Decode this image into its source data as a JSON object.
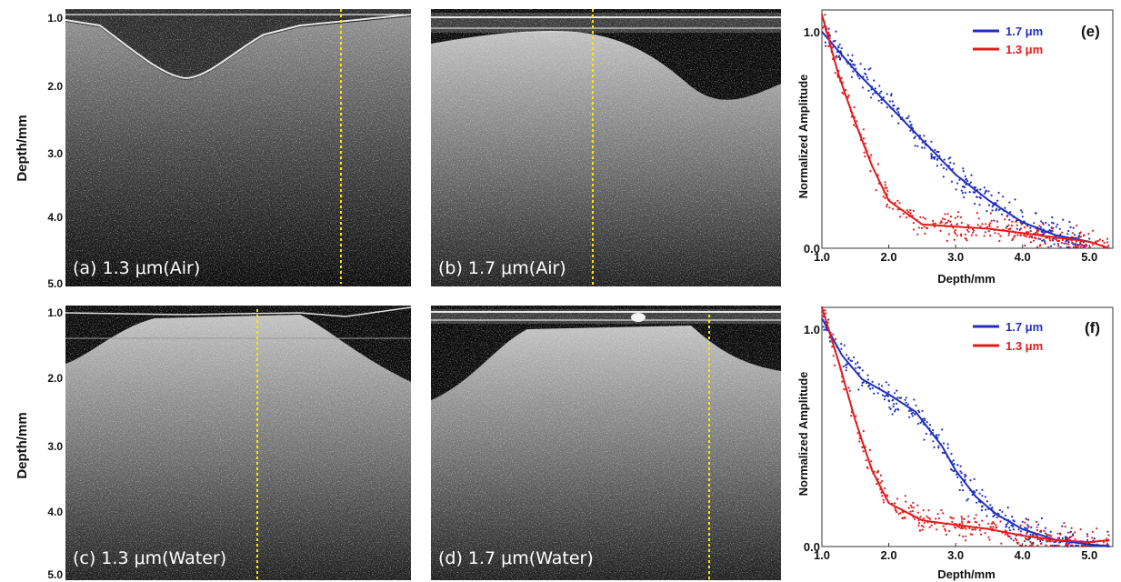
{
  "oct_axis": {
    "ylabel": "Depth/mm",
    "ticks": [
      "1.0",
      "2.0",
      "3.0",
      "4.0",
      "5.0"
    ]
  },
  "panels": [
    {
      "id": "a",
      "label": "(a) 1.3 μm(Air)"
    },
    {
      "id": "b",
      "label": "(b) 1.7 μm(Air)"
    },
    {
      "id": "c",
      "label": "(c) 1.3 μm(Water)"
    },
    {
      "id": "d",
      "label": "(d) 1.7 μm(Water)"
    }
  ],
  "colors": {
    "series_17": "#1f2fbf",
    "series_13": "#e31a1c",
    "guide_line": "#ffe600"
  },
  "chart_data": [
    {
      "type": "scatter",
      "panel_label": "(e)",
      "xlabel": "Depth/mm",
      "ylabel": "Normalized Amplitude",
      "xlim": [
        1.0,
        5.35
      ],
      "ylim": [
        0.0,
        1.1
      ],
      "xticks": [
        "1.0",
        "2.0",
        "3.0",
        "4.0",
        "5.0"
      ],
      "yticks": [
        "0.0",
        "1.0"
      ],
      "legend": "top-right",
      "series": [
        {
          "name": "1.7 μm",
          "x": [
            1.0,
            1.5,
            2.0,
            2.5,
            3.0,
            3.5,
            4.0,
            4.5,
            5.0
          ],
          "y": [
            1.0,
            0.82,
            0.66,
            0.5,
            0.34,
            0.22,
            0.12,
            0.06,
            0.03
          ]
        },
        {
          "name": "1.3 μm",
          "x": [
            1.0,
            1.25,
            1.5,
            1.75,
            2.0,
            2.5,
            3.0,
            3.5,
            4.0,
            4.5,
            5.0,
            5.3
          ],
          "y": [
            1.08,
            0.8,
            0.58,
            0.38,
            0.22,
            0.11,
            0.1,
            0.09,
            0.07,
            0.05,
            0.03,
            0.0
          ]
        }
      ]
    },
    {
      "type": "scatter",
      "panel_label": "(f)",
      "xlabel": "Depth/mm",
      "ylabel": "Normalized Amplitude",
      "xlim": [
        1.0,
        5.35
      ],
      "ylim": [
        0.0,
        1.1
      ],
      "xticks": [
        "1.0",
        "2.0",
        "3.0",
        "4.0",
        "5.0"
      ],
      "yticks": [
        "0.0",
        "1.0"
      ],
      "legend": "top-right",
      "series": [
        {
          "name": "1.7 μm",
          "x": [
            1.0,
            1.3,
            1.6,
            2.0,
            2.4,
            2.8,
            3.0,
            3.3,
            3.6,
            4.0,
            4.5,
            5.0,
            5.3
          ],
          "y": [
            1.05,
            0.88,
            0.77,
            0.7,
            0.62,
            0.46,
            0.35,
            0.23,
            0.15,
            0.08,
            0.03,
            0.01,
            0.0
          ]
        },
        {
          "name": "1.3 μm",
          "x": [
            1.0,
            1.25,
            1.5,
            1.75,
            2.0,
            2.5,
            3.0,
            3.5,
            4.0,
            4.5,
            5.0,
            5.3
          ],
          "y": [
            1.1,
            0.85,
            0.58,
            0.35,
            0.2,
            0.12,
            0.1,
            0.08,
            0.05,
            0.03,
            0.02,
            0.03
          ]
        }
      ]
    }
  ]
}
